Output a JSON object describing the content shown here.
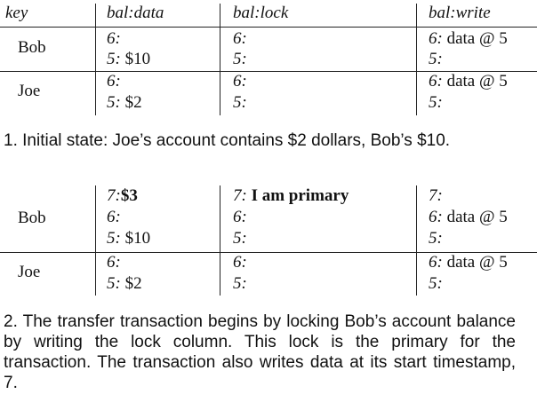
{
  "table1": {
    "headers": [
      "key",
      "bal:data",
      "bal:lock",
      "bal:write"
    ],
    "rows": [
      {
        "key": "Bob",
        "data": [
          [
            "6:",
            ""
          ],
          [
            "5:",
            " $10"
          ]
        ],
        "lock": [
          [
            "6:",
            ""
          ],
          [
            "5:",
            ""
          ]
        ],
        "write": [
          [
            "6:",
            " data @ 5"
          ],
          [
            "5:",
            ""
          ]
        ]
      },
      {
        "key": "Joe",
        "data": [
          [
            "6:",
            ""
          ],
          [
            "5:",
            " $2"
          ]
        ],
        "lock": [
          [
            "6:",
            ""
          ],
          [
            "5:",
            ""
          ]
        ],
        "write": [
          [
            "6:",
            " data @ 5"
          ],
          [
            "5:",
            ""
          ]
        ]
      }
    ]
  },
  "caption1": "1. Initial state: Joe’s account contains $2 dollars, Bob’s $10.",
  "table2": {
    "rows": [
      {
        "key": "Bob",
        "data": [
          [
            "7:",
            "$3"
          ],
          [
            "6:",
            ""
          ],
          [
            "5:",
            " $10"
          ]
        ],
        "lock": [
          [
            "7:",
            " I am primary"
          ],
          [
            "6:",
            ""
          ],
          [
            "5:",
            ""
          ]
        ],
        "write": [
          [
            "7:",
            ""
          ],
          [
            "6:",
            " data @ 5"
          ],
          [
            "5:",
            ""
          ]
        ]
      },
      {
        "key": "Joe",
        "data": [
          [
            "6:",
            ""
          ],
          [
            "5:",
            " $2"
          ]
        ],
        "lock": [
          [
            "6:",
            ""
          ],
          [
            "5:",
            ""
          ]
        ],
        "write": [
          [
            "6:",
            " data @ 5"
          ],
          [
            "5:",
            ""
          ]
        ]
      }
    ]
  },
  "caption2": "2. The transfer transaction begins by locking Bob’s account balance by writing the lock column. This lock is the primary for the transaction. The transaction also writes data at its start timestamp, 7."
}
